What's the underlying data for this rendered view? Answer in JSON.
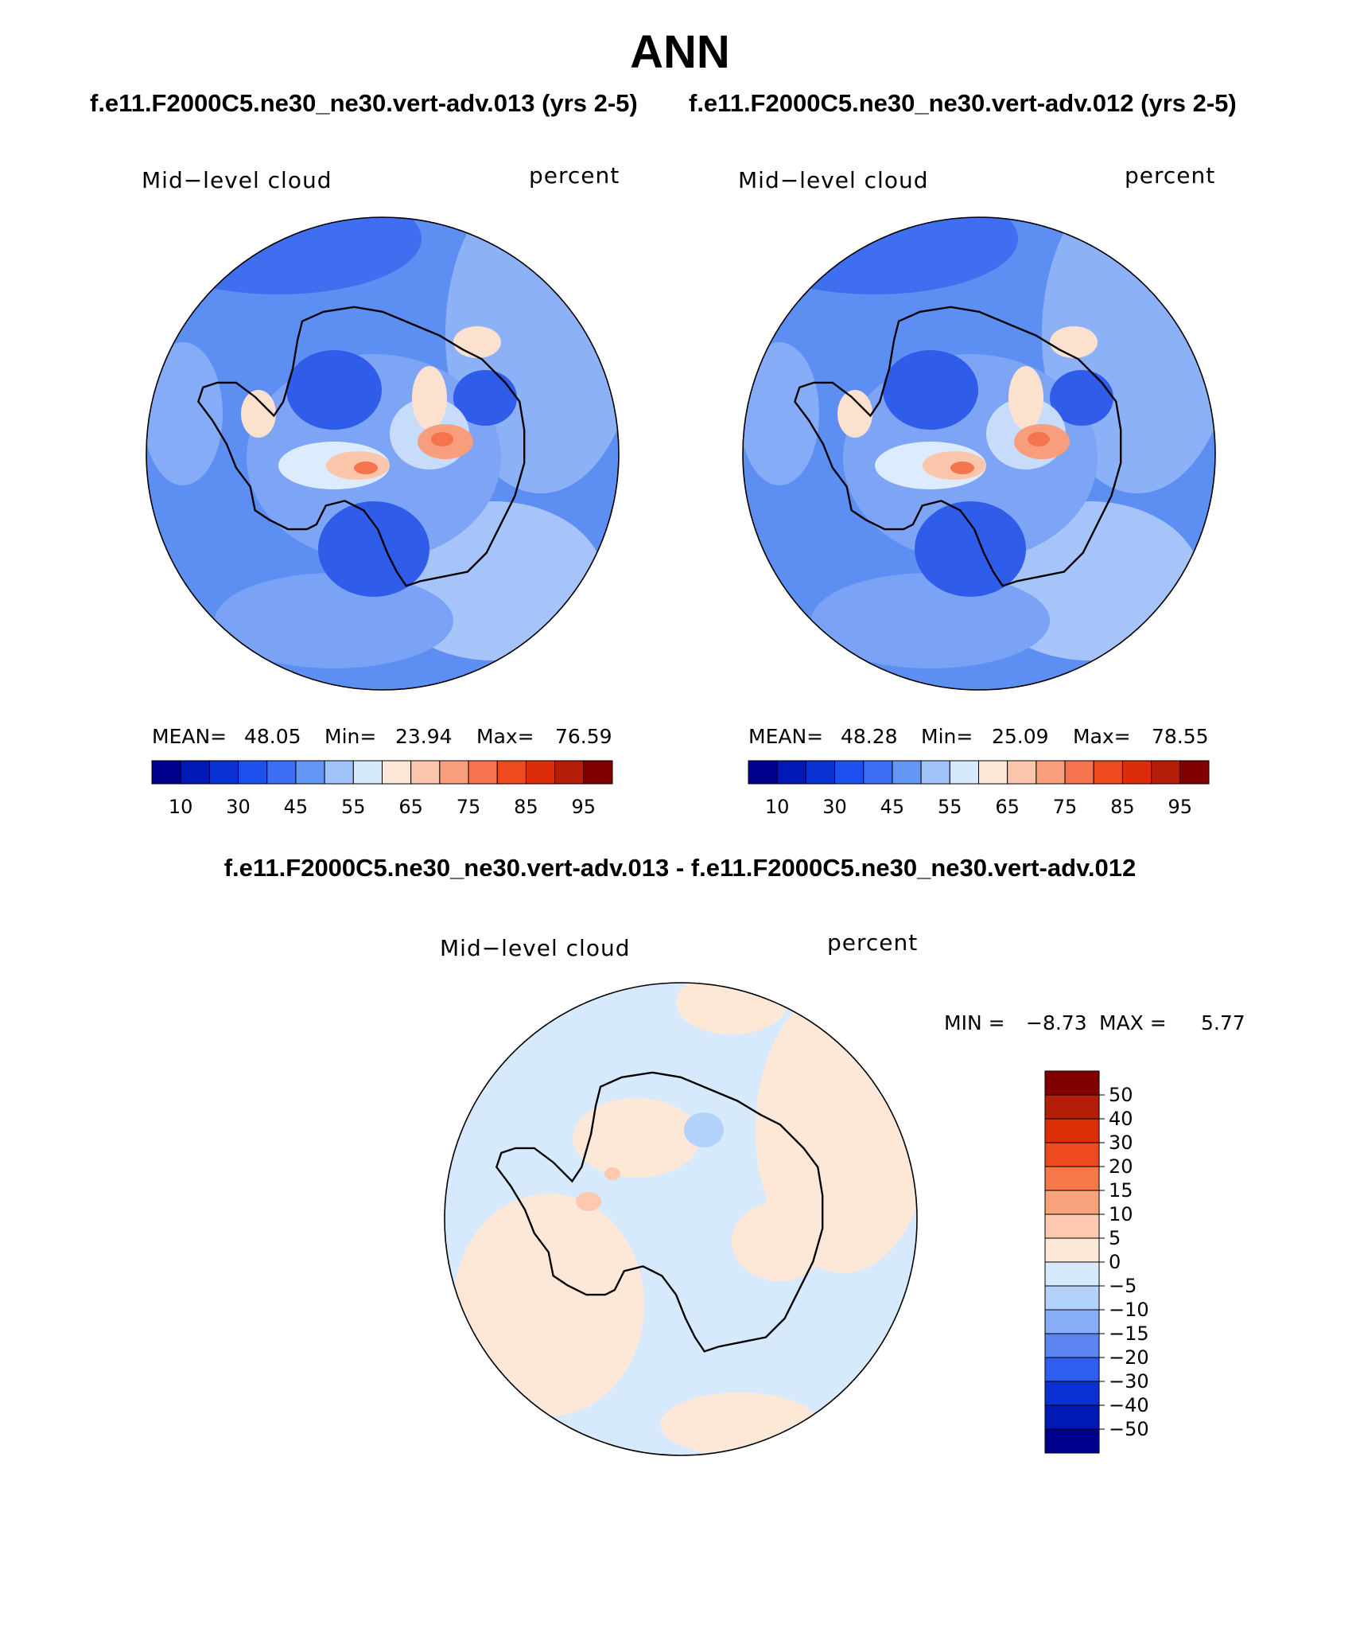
{
  "figure": {
    "season": "ANN",
    "test_case": "f.e11.F2000C5.ne30_ne30.vert-adv.013 (yrs 2-5)",
    "control_case": "f.e11.F2000C5.ne30_ne30.vert-adv.012 (yrs 2-5)",
    "diff_title": "f.e11.F2000C5.ne30_ne30.vert-adv.013 - f.e11.F2000C5.ne30_ne30.vert-adv.012"
  },
  "panels": [
    {
      "variable": "Mid−level cloud",
      "units": "percent",
      "mean_label": "MEAN=",
      "mean": "48.05",
      "min_label": "Min=",
      "min": "23.94",
      "max_label": "Max=",
      "max": "76.59"
    },
    {
      "variable": "Mid−level cloud",
      "units": "percent",
      "mean_label": "MEAN=",
      "mean": "48.28",
      "min_label": "Min=",
      "min": "25.09",
      "max_label": "Max=",
      "max": "78.55"
    }
  ],
  "diff_panel": {
    "variable": "Mid−level cloud",
    "units": "percent",
    "min_label": "MIN =",
    "min": "−8.73",
    "max_label": "MAX =",
    "max": "5.77"
  },
  "chart_data": [
    {
      "type": "heatmap",
      "title": "Mid−level cloud",
      "units": "percent",
      "projection": "south polar stereographic",
      "mean": 48.05,
      "min": 23.94,
      "max": 76.59,
      "colorbar_levels": [
        10,
        30,
        45,
        55,
        65,
        75,
        85,
        95
      ],
      "colorbar_labels": [
        "10",
        "30",
        "45",
        "55",
        "65",
        "75",
        "85",
        "95"
      ]
    },
    {
      "type": "heatmap",
      "title": "Mid−level cloud",
      "units": "percent",
      "projection": "south polar stereographic",
      "mean": 48.28,
      "min": 25.09,
      "max": 78.55,
      "colorbar_levels": [
        10,
        30,
        45,
        55,
        65,
        75,
        85,
        95
      ],
      "colorbar_labels": [
        "10",
        "30",
        "45",
        "55",
        "65",
        "75",
        "85",
        "95"
      ]
    },
    {
      "type": "heatmap",
      "title": "Mid−level cloud",
      "units": "percent",
      "projection": "south polar stereographic",
      "min": -8.73,
      "max": 5.77,
      "colorbar_levels": [
        50,
        40,
        30,
        20,
        15,
        10,
        5,
        0,
        -5,
        -10,
        -15,
        -20,
        -30,
        -40,
        -50
      ],
      "colorbar_labels": [
        "50",
        "40",
        "30",
        "20",
        "15",
        "10",
        "5",
        "0",
        "−5",
        "−10",
        "−15",
        "−20",
        "−30",
        "−40",
        "−50"
      ]
    }
  ],
  "colors": {
    "horizontal_bar": [
      "#00008c",
      "#0019b4",
      "#0a32d2",
      "#1e50f0",
      "#3c6ef5",
      "#6496f5",
      "#a0c3fa",
      "#d7eafd",
      "#fde8d8",
      "#fcc6ac",
      "#f99e7c",
      "#f5744e",
      "#ee4a20",
      "#dc2c0a",
      "#b41e08",
      "#820000"
    ],
    "vertical_bar": [
      "#820000",
      "#b41e08",
      "#dc3008",
      "#ee4a20",
      "#f57848",
      "#f9a37c",
      "#fcc8ae",
      "#fde8d8",
      "#d7eafd",
      "#b3d2fb",
      "#87adf7",
      "#5b84f2",
      "#2e5ef0",
      "#0a32d2",
      "#0019b4",
      "#00008c"
    ],
    "ocean_blue": "#4a7ef0",
    "diff_light_blue": "#d7eafd",
    "diff_light_peach": "#fde8d8"
  }
}
